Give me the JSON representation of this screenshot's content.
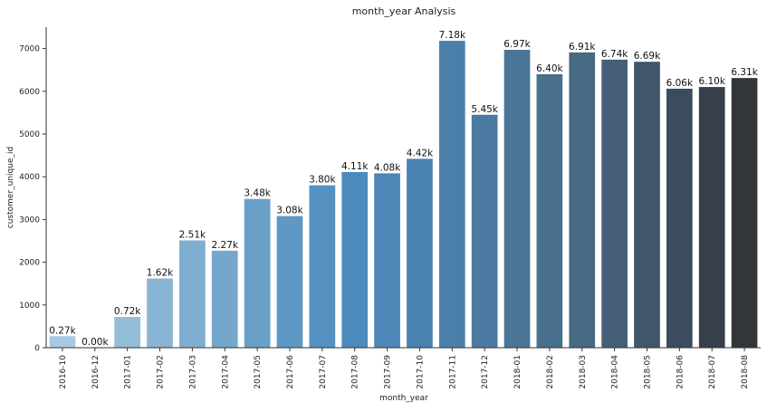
{
  "chart_data": {
    "type": "bar",
    "title": "month_year Analysis",
    "xlabel": "month_year",
    "ylabel": "customer_unique_id",
    "categories": [
      "2016-10",
      "2016-12",
      "2017-01",
      "2017-02",
      "2017-03",
      "2017-04",
      "2017-05",
      "2017-06",
      "2017-07",
      "2017-08",
      "2017-09",
      "2017-10",
      "2017-11",
      "2017-12",
      "2018-01",
      "2018-02",
      "2018-03",
      "2018-04",
      "2018-05",
      "2018-06",
      "2018-07",
      "2018-08"
    ],
    "values": [
      270,
      1,
      720,
      1620,
      2510,
      2270,
      3480,
      3080,
      3800,
      4110,
      4080,
      4420,
      7180,
      5450,
      6970,
      6400,
      6910,
      6740,
      6690,
      6060,
      6100,
      6310
    ],
    "data_labels": [
      "0.27k",
      "0.00k",
      "0.72k",
      "1.62k",
      "2.51k",
      "2.27k",
      "3.48k",
      "3.08k",
      "3.80k",
      "4.11k",
      "4.08k",
      "4.42k",
      "7.18k",
      "5.45k",
      "6.97k",
      "6.40k",
      "6.91k",
      "6.74k",
      "6.69k",
      "6.06k",
      "6.10k",
      "6.31k"
    ],
    "colors": [
      "#a9c8e0",
      "#9fc3dc",
      "#94bdd8",
      "#89b4d3",
      "#7fadcf",
      "#75a6cb",
      "#6a9fc8",
      "#5f98c4",
      "#5591c1",
      "#4b8abd",
      "#4d86b7",
      "#4a82b2",
      "#4a7faa",
      "#4a7aa1",
      "#4a7597",
      "#486f8c",
      "#466a82",
      "#445f77",
      "#3f566b",
      "#3a4c5d",
      "#363f4b",
      "#333639"
    ],
    "yticks": [
      "0",
      "1000",
      "2000",
      "3000",
      "4000",
      "5000",
      "6000",
      "7000"
    ],
    "ylim": [
      0,
      7500
    ],
    "grid": false,
    "legend": "none"
  }
}
